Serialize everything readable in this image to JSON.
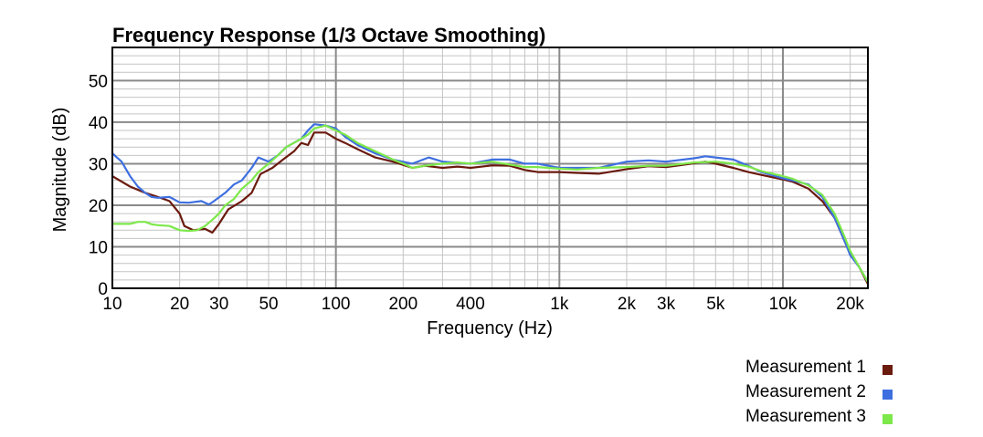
{
  "chart_data": {
    "type": "line",
    "title": "Frequency Response (1/3 Octave Smoothing)",
    "xlabel": "Frequency (Hz)",
    "ylabel": "Magnitude (dB)",
    "xscale": "log",
    "xlim": [
      10,
      24000
    ],
    "ylim": [
      0,
      58
    ],
    "xticks": [
      {
        "value": 10,
        "label": "10"
      },
      {
        "value": 20,
        "label": "20"
      },
      {
        "value": 30,
        "label": "30"
      },
      {
        "value": 50,
        "label": "50"
      },
      {
        "value": 100,
        "label": "100"
      },
      {
        "value": 200,
        "label": "200"
      },
      {
        "value": 400,
        "label": "400"
      },
      {
        "value": 1000,
        "label": "1k"
      },
      {
        "value": 2000,
        "label": "2k"
      },
      {
        "value": 3000,
        "label": "3k"
      },
      {
        "value": 5000,
        "label": "5k"
      },
      {
        "value": 10000,
        "label": "10k"
      },
      {
        "value": 20000,
        "label": "20k"
      }
    ],
    "yticks": [
      0,
      10,
      20,
      30,
      40,
      50
    ],
    "grid": true,
    "legend_position": "bottom-right",
    "series": [
      {
        "name": "Measurement 1",
        "color": "#6b1a0e",
        "points": [
          [
            10,
            27
          ],
          [
            12,
            24.5
          ],
          [
            14,
            23
          ],
          [
            16,
            22
          ],
          [
            18,
            21
          ],
          [
            20,
            18
          ],
          [
            21,
            15
          ],
          [
            23,
            14
          ],
          [
            26,
            14.3
          ],
          [
            28,
            13.4
          ],
          [
            30,
            15.5
          ],
          [
            33,
            19
          ],
          [
            38,
            21
          ],
          [
            42,
            23
          ],
          [
            46,
            27.5
          ],
          [
            52,
            29
          ],
          [
            58,
            31
          ],
          [
            65,
            33
          ],
          [
            70,
            35
          ],
          [
            75,
            34.5
          ],
          [
            80,
            37.5
          ],
          [
            90,
            37.5
          ],
          [
            100,
            36
          ],
          [
            110,
            35
          ],
          [
            125,
            33.5
          ],
          [
            150,
            31.5
          ],
          [
            180,
            30.5
          ],
          [
            220,
            29
          ],
          [
            250,
            29.5
          ],
          [
            300,
            29
          ],
          [
            350,
            29.3
          ],
          [
            400,
            29
          ],
          [
            500,
            29.6
          ],
          [
            600,
            29.5
          ],
          [
            700,
            28.5
          ],
          [
            800,
            28
          ],
          [
            1000,
            28
          ],
          [
            1200,
            27.8
          ],
          [
            1500,
            27.6
          ],
          [
            2000,
            28.7
          ],
          [
            2500,
            29.4
          ],
          [
            3000,
            29.2
          ],
          [
            4000,
            30.1
          ],
          [
            4500,
            30.5
          ],
          [
            5000,
            30
          ],
          [
            6000,
            29
          ],
          [
            7000,
            28
          ],
          [
            8000,
            27.3
          ],
          [
            10000,
            26.2
          ],
          [
            11000,
            25.7
          ],
          [
            13000,
            24
          ],
          [
            15000,
            21
          ],
          [
            17000,
            17
          ],
          [
            18000,
            14
          ],
          [
            19000,
            11
          ],
          [
            20000,
            8.5
          ],
          [
            22000,
            5
          ],
          [
            24000,
            1
          ]
        ]
      },
      {
        "name": "Measurement 2",
        "color": "#3e6fe0",
        "points": [
          [
            10,
            32.5
          ],
          [
            11,
            30.5
          ],
          [
            12,
            27
          ],
          [
            13,
            24.5
          ],
          [
            14,
            23
          ],
          [
            15,
            22
          ],
          [
            16,
            21.8
          ],
          [
            18,
            22
          ],
          [
            20,
            20.7
          ],
          [
            22,
            20.6
          ],
          [
            25,
            21
          ],
          [
            27,
            20.2
          ],
          [
            28,
            20.7
          ],
          [
            32,
            23
          ],
          [
            35,
            25
          ],
          [
            38,
            26
          ],
          [
            42,
            29
          ],
          [
            45,
            31.5
          ],
          [
            50,
            30.5
          ],
          [
            55,
            32
          ],
          [
            60,
            34
          ],
          [
            70,
            36
          ],
          [
            75,
            38
          ],
          [
            80,
            39.5
          ],
          [
            90,
            39.2
          ],
          [
            100,
            38.5
          ],
          [
            110,
            36.5
          ],
          [
            125,
            34.5
          ],
          [
            150,
            32.5
          ],
          [
            180,
            31
          ],
          [
            220,
            30
          ],
          [
            260,
            31.5
          ],
          [
            300,
            30.5
          ],
          [
            400,
            30
          ],
          [
            500,
            31
          ],
          [
            600,
            31
          ],
          [
            700,
            30
          ],
          [
            800,
            30
          ],
          [
            1000,
            29
          ],
          [
            1200,
            29
          ],
          [
            1500,
            29
          ],
          [
            2000,
            30.5
          ],
          [
            2500,
            30.8
          ],
          [
            3000,
            30.5
          ],
          [
            4000,
            31.3
          ],
          [
            4500,
            31.8
          ],
          [
            5000,
            31.5
          ],
          [
            6000,
            31
          ],
          [
            7000,
            29.5
          ],
          [
            8000,
            28
          ],
          [
            10000,
            26.5
          ],
          [
            11000,
            26
          ],
          [
            13000,
            25
          ],
          [
            15000,
            22
          ],
          [
            17000,
            17
          ],
          [
            18000,
            14
          ],
          [
            19000,
            11
          ],
          [
            20000,
            8
          ],
          [
            22000,
            5
          ],
          [
            24000,
            1.5
          ]
        ]
      },
      {
        "name": "Measurement 3",
        "color": "#7de84a",
        "points": [
          [
            10,
            15.5
          ],
          [
            11,
            15.5
          ],
          [
            12,
            15.5
          ],
          [
            13,
            16
          ],
          [
            14,
            16
          ],
          [
            15,
            15.4
          ],
          [
            16,
            15.2
          ],
          [
            18,
            15
          ],
          [
            20,
            14
          ],
          [
            22,
            13.8
          ],
          [
            24,
            14
          ],
          [
            26,
            15
          ],
          [
            28,
            16.5
          ],
          [
            30,
            18
          ],
          [
            32,
            20
          ],
          [
            35,
            21.5
          ],
          [
            38,
            24
          ],
          [
            42,
            26
          ],
          [
            45,
            28
          ],
          [
            50,
            30
          ],
          [
            55,
            32
          ],
          [
            60,
            34
          ],
          [
            70,
            36
          ],
          [
            75,
            37
          ],
          [
            80,
            38.5
          ],
          [
            90,
            39.2
          ],
          [
            100,
            38
          ],
          [
            110,
            37
          ],
          [
            125,
            35
          ],
          [
            150,
            33
          ],
          [
            180,
            31
          ],
          [
            200,
            30
          ],
          [
            220,
            29
          ],
          [
            250,
            29.5
          ],
          [
            300,
            30
          ],
          [
            350,
            30.3
          ],
          [
            400,
            30
          ],
          [
            500,
            30.5
          ],
          [
            600,
            29.8
          ],
          [
            700,
            29.2
          ],
          [
            800,
            29.2
          ],
          [
            1000,
            28.8
          ],
          [
            1200,
            28.6
          ],
          [
            1500,
            29
          ],
          [
            2000,
            29.2
          ],
          [
            2500,
            29.5
          ],
          [
            3000,
            29.5
          ],
          [
            4000,
            30.3
          ],
          [
            5000,
            30.5
          ],
          [
            6000,
            30
          ],
          [
            7000,
            29.3
          ],
          [
            8000,
            28.2
          ],
          [
            10000,
            27
          ],
          [
            11000,
            26.4
          ],
          [
            13000,
            24.8
          ],
          [
            15000,
            22.5
          ],
          [
            17000,
            18
          ],
          [
            18000,
            15
          ],
          [
            19000,
            12
          ],
          [
            20000,
            9
          ],
          [
            22000,
            5
          ],
          [
            24000,
            1.5
          ]
        ]
      }
    ]
  }
}
